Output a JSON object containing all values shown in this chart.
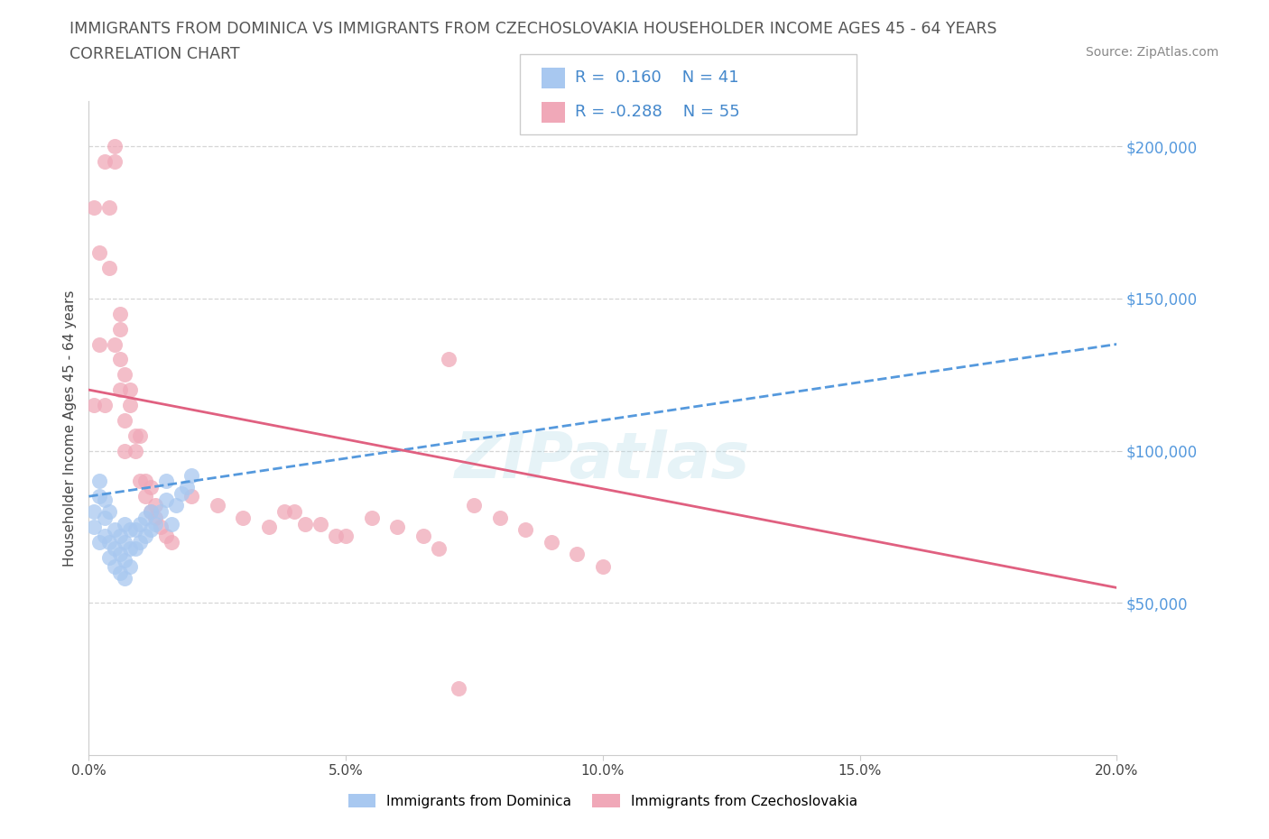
{
  "title_line1": "IMMIGRANTS FROM DOMINICA VS IMMIGRANTS FROM CZECHOSLOVAKIA HOUSEHOLDER INCOME AGES 45 - 64 YEARS",
  "title_line2": "CORRELATION CHART",
  "source": "Source: ZipAtlas.com",
  "ylabel": "Householder Income Ages 45 - 64 years",
  "xlim": [
    0.0,
    0.2
  ],
  "ylim": [
    0,
    215000
  ],
  "yticks": [
    50000,
    100000,
    150000,
    200000
  ],
  "ytick_labels": [
    "$50,000",
    "$100,000",
    "$150,000",
    "$200,000"
  ],
  "xticks": [
    0.0,
    0.05,
    0.1,
    0.15,
    0.2
  ],
  "xtick_labels": [
    "0.0%",
    "5.0%",
    "10.0%",
    "15.0%",
    "20.0%"
  ],
  "dominica_color": "#a8c8f0",
  "czechoslovakia_color": "#f0a8b8",
  "dominica_line_color": "#5599dd",
  "czechoslovakia_line_color": "#e06080",
  "R_dominica": 0.16,
  "N_dominica": 41,
  "R_czechoslovakia": -0.288,
  "N_czechoslovakia": 55,
  "watermark": "ZIPatlas",
  "dominica_x": [
    0.001,
    0.001,
    0.002,
    0.002,
    0.002,
    0.003,
    0.003,
    0.003,
    0.004,
    0.004,
    0.004,
    0.005,
    0.005,
    0.005,
    0.006,
    0.006,
    0.006,
    0.007,
    0.007,
    0.007,
    0.007,
    0.008,
    0.008,
    0.008,
    0.009,
    0.009,
    0.01,
    0.01,
    0.011,
    0.011,
    0.012,
    0.012,
    0.013,
    0.014,
    0.015,
    0.015,
    0.016,
    0.017,
    0.018,
    0.019,
    0.02
  ],
  "dominica_y": [
    75000,
    80000,
    70000,
    85000,
    90000,
    72000,
    78000,
    84000,
    65000,
    70000,
    80000,
    62000,
    68000,
    74000,
    60000,
    66000,
    72000,
    58000,
    64000,
    70000,
    76000,
    62000,
    68000,
    74000,
    68000,
    74000,
    70000,
    76000,
    72000,
    78000,
    74000,
    80000,
    76000,
    80000,
    84000,
    90000,
    76000,
    82000,
    86000,
    88000,
    92000
  ],
  "czechoslovakia_x": [
    0.001,
    0.001,
    0.002,
    0.002,
    0.003,
    0.003,
    0.004,
    0.004,
    0.005,
    0.005,
    0.005,
    0.006,
    0.006,
    0.006,
    0.006,
    0.007,
    0.007,
    0.007,
    0.008,
    0.008,
    0.009,
    0.009,
    0.01,
    0.01,
    0.011,
    0.011,
    0.012,
    0.012,
    0.013,
    0.013,
    0.014,
    0.015,
    0.016,
    0.02,
    0.025,
    0.03,
    0.035,
    0.04,
    0.045,
    0.05,
    0.055,
    0.06,
    0.065,
    0.07,
    0.075,
    0.08,
    0.085,
    0.09,
    0.095,
    0.1,
    0.038,
    0.042,
    0.048,
    0.068,
    0.072
  ],
  "czechoslovakia_y": [
    115000,
    180000,
    165000,
    135000,
    115000,
    195000,
    180000,
    160000,
    200000,
    195000,
    135000,
    120000,
    140000,
    130000,
    145000,
    125000,
    110000,
    100000,
    120000,
    115000,
    105000,
    100000,
    105000,
    90000,
    90000,
    85000,
    80000,
    88000,
    82000,
    78000,
    75000,
    72000,
    70000,
    85000,
    82000,
    78000,
    75000,
    80000,
    76000,
    72000,
    78000,
    75000,
    72000,
    130000,
    82000,
    78000,
    74000,
    70000,
    66000,
    62000,
    80000,
    76000,
    72000,
    68000,
    22000
  ],
  "dom_trend_x": [
    0.0,
    0.2
  ],
  "dom_trend_y": [
    85000,
    135000
  ],
  "czk_trend_x": [
    0.0,
    0.2
  ],
  "czk_trend_y": [
    120000,
    55000
  ]
}
